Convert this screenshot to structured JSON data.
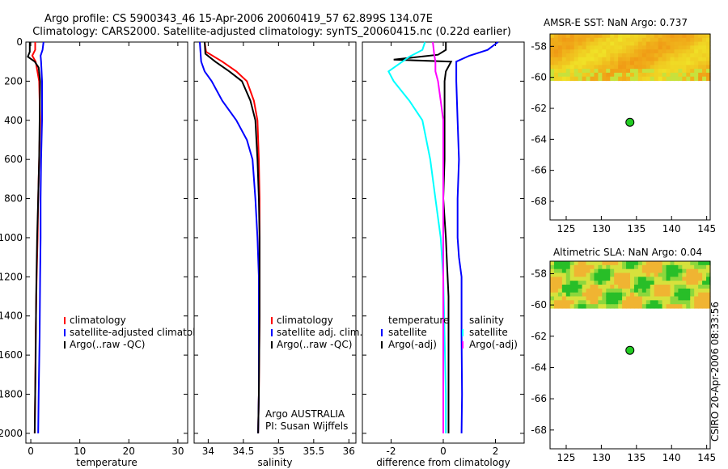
{
  "header": {
    "line1": "Argo profile: CS 5900343_46 15-Apr-2006 20060419_57 62.899S 134.07E",
    "line2": "Climatology: CARS2000. Satellite-adjusted climatology: synTS_20060415.nc (0.22d earlier)"
  },
  "colors": {
    "clim": "#ff0000",
    "sat": "#0000ff",
    "argo": "#000000",
    "satdiff": "#00ffff",
    "argodiff": "#ff00ff",
    "dot": "#22cc22"
  },
  "chart_data": [
    {
      "type": "line",
      "id": "temperature",
      "xlabel": "temperature",
      "xlim": [
        -1,
        32
      ],
      "ylim": [
        2050,
        0
      ],
      "xticks": [
        0,
        10,
        20,
        30
      ],
      "yticks": [
        0,
        200,
        400,
        600,
        800,
        1000,
        1200,
        1400,
        1600,
        1800,
        2000
      ],
      "legend": [
        "climatology",
        "satellite-adjusted climatolog",
        "Argo(..raw -QC)"
      ],
      "series": [
        {
          "name": "climatology",
          "color": "#ff0000",
          "x": [
            0.9,
            0.9,
            0.3,
            1.0,
            1.7,
            1.9,
            1.7,
            1.5,
            1.4,
            1.2,
            1.0,
            0.9,
            0.8
          ],
          "y": [
            0,
            40,
            70,
            100,
            200,
            400,
            600,
            800,
            1000,
            1200,
            1500,
            1800,
            2000
          ]
        },
        {
          "name": "satellite-adjusted climatology",
          "color": "#0000ff",
          "x": [
            2.6,
            2.4,
            2.0,
            2.1,
            2.3,
            2.3,
            2.1,
            2.0,
            2.0,
            1.9,
            1.8,
            1.6,
            1.5
          ],
          "y": [
            0,
            40,
            70,
            100,
            200,
            400,
            600,
            800,
            1000,
            1200,
            1500,
            1800,
            2000
          ]
        },
        {
          "name": "Argo(..raw -QC)",
          "color": "#000000",
          "x": [
            -0.2,
            -0.2,
            -0.6,
            0.8,
            1.6,
            1.9,
            1.8,
            1.7,
            1.5,
            1.3,
            1.1,
            1.0,
            0.9,
            0.8
          ],
          "y": [
            0,
            50,
            75,
            100,
            130,
            200,
            400,
            600,
            800,
            1000,
            1300,
            1600,
            1800,
            2000
          ]
        }
      ]
    },
    {
      "type": "line",
      "id": "salinity",
      "xlabel": "salinity",
      "xlim": [
        33.8,
        36.1
      ],
      "ylim": [
        2050,
        0
      ],
      "xticks": [
        34,
        34.5,
        35,
        35.5,
        36
      ],
      "xticklabels": [
        "34",
        "34.5",
        "35",
        "35.5",
        "36"
      ],
      "legend": [
        "climatology",
        "satellite adj. clim.",
        "Argo(..raw -QC)"
      ],
      "notes": [
        "Argo AUSTRALIA",
        "PI: Susan Wijffels"
      ],
      "series": [
        {
          "name": "climatology",
          "color": "#ff0000",
          "x": [
            33.95,
            33.97,
            34.2,
            34.4,
            34.55,
            34.65,
            34.7,
            34.72,
            34.73,
            34.73,
            34.73,
            34.72,
            34.71
          ],
          "y": [
            0,
            50,
            100,
            150,
            200,
            300,
            400,
            600,
            800,
            1000,
            1400,
            1800,
            2000
          ]
        },
        {
          "name": "satellite adj. clim.",
          "color": "#0000ff",
          "x": [
            33.88,
            33.9,
            33.95,
            34.05,
            34.2,
            34.4,
            34.55,
            34.63,
            34.67,
            34.7,
            34.72,
            34.72,
            34.72,
            34.71
          ],
          "y": [
            0,
            100,
            150,
            200,
            300,
            400,
            500,
            600,
            800,
            1000,
            1200,
            1400,
            1800,
            2000
          ]
        },
        {
          "name": "Argo(..raw -QC)",
          "color": "#000000",
          "x": [
            33.95,
            33.96,
            34.1,
            34.3,
            34.48,
            34.6,
            34.67,
            34.7,
            34.72,
            34.73,
            34.73,
            34.72,
            34.71
          ],
          "y": [
            0,
            60,
            100,
            150,
            200,
            300,
            400,
            600,
            800,
            1000,
            1400,
            1800,
            2000
          ]
        }
      ]
    },
    {
      "type": "line",
      "id": "difference",
      "xlabel": "difference from climatology",
      "xlim": [
        -3.1,
        3.1
      ],
      "ylim": [
        2050,
        0
      ],
      "xticks": [
        -2,
        0,
        2
      ],
      "legend_left": [
        "temperature",
        "satellite",
        "Argo(-adj)"
      ],
      "legend_right": [
        "salinity",
        "satellite",
        "Argo(-adj)"
      ],
      "series": [
        {
          "name": "temperature satellite",
          "color": "#0000ff",
          "x": [
            2.1,
            1.7,
            1.0,
            0.5,
            0.5,
            0.55,
            0.6,
            0.55,
            0.55,
            0.6,
            0.7,
            0.7,
            0.72,
            0.7
          ],
          "y": [
            0,
            40,
            70,
            100,
            200,
            400,
            600,
            800,
            1000,
            1100,
            1200,
            1500,
            1800,
            2000
          ]
        },
        {
          "name": "temperature Argo(-adj)",
          "color": "#000000",
          "x": [
            0.1,
            0.1,
            -0.2,
            -1.9,
            0.3,
            0.1,
            0.05,
            0.05,
            0.05,
            0.0,
            0.1,
            0.15,
            0.2,
            0.2,
            0.2,
            0.2
          ],
          "y": [
            0,
            40,
            65,
            90,
            100,
            150,
            200,
            400,
            600,
            800,
            1000,
            1150,
            1300,
            1500,
            1800,
            2000
          ]
        },
        {
          "name": "salinity satellite",
          "color": "#00ffff",
          "x": [
            -0.7,
            -0.8,
            -1.3,
            -2.1,
            -1.9,
            -1.3,
            -0.8,
            -0.5,
            -0.3,
            -0.1,
            0.0,
            0.05,
            0.1,
            0.1
          ],
          "y": [
            0,
            40,
            75,
            150,
            200,
            300,
            400,
            600,
            800,
            1000,
            1200,
            1500,
            1800,
            2000
          ]
        },
        {
          "name": "salinity Argo(-adj)",
          "color": "#ff00ff",
          "x": [
            -0.4,
            -0.35,
            -0.3,
            -0.3,
            -0.2,
            -0.1,
            0.0,
            0.0,
            0.0,
            0.0,
            0.0,
            0.0
          ],
          "y": [
            0,
            60,
            100,
            150,
            200,
            300,
            400,
            600,
            1000,
            1400,
            1800,
            2000
          ]
        }
      ]
    }
  ],
  "maps": [
    {
      "id": "sst",
      "title": "AMSR-E SST: NaN Argo: 0.737",
      "xticks": [
        125,
        130,
        135,
        140,
        145
      ],
      "yticks": [
        -58,
        -60,
        -62,
        -64,
        -66,
        -68
      ],
      "xlim": [
        122.7,
        145.5
      ],
      "ylim": [
        -69.2,
        -57.2
      ],
      "data_lat_range": [
        -60.2,
        -57.2
      ],
      "argo": {
        "lon": 134.07,
        "lat": -62.9
      }
    },
    {
      "id": "sla",
      "title": "Altimetric SLA: NaN Argo: 0.04",
      "xticks": [
        125,
        130,
        135,
        140,
        145
      ],
      "yticks": [
        -58,
        -60,
        -62,
        -64,
        -66,
        -68
      ],
      "xlim": [
        122.7,
        145.5
      ],
      "ylim": [
        -69.2,
        -57.2
      ],
      "data_lat_range": [
        -60.2,
        -57.2
      ],
      "argo": {
        "lon": 134.07,
        "lat": -62.9
      }
    }
  ],
  "footer": {
    "stamp": "CSIRO 20-Apr-2006 08:33:56"
  }
}
